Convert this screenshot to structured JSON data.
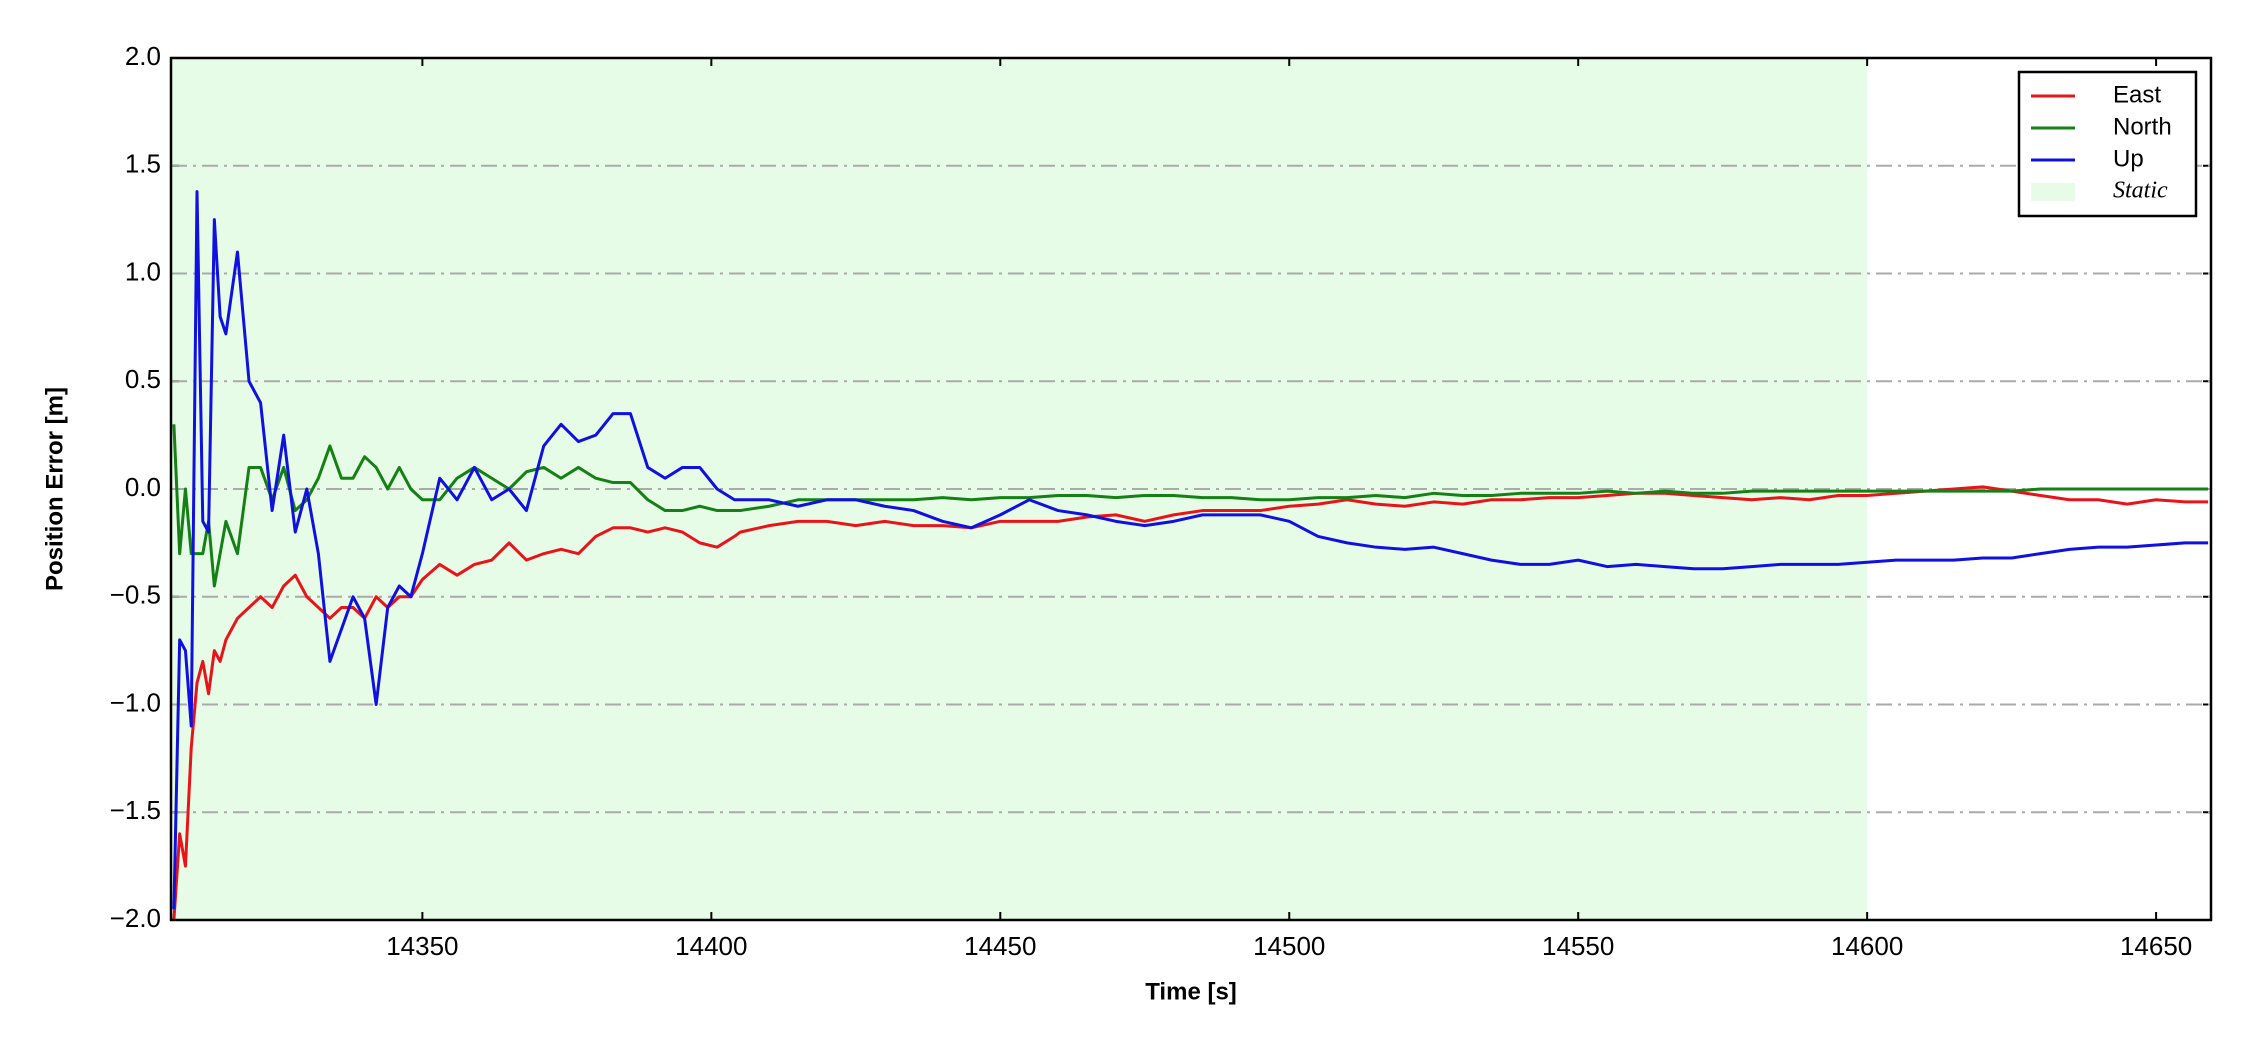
{
  "chart_data": {
    "type": "line",
    "xlabel": "Time [s]",
    "ylabel": "Position Error [m]",
    "x": [
      14307,
      14308,
      14309,
      14310,
      14311,
      14312,
      14313,
      14314,
      14315,
      14316,
      14318,
      14320,
      14322,
      14324,
      14326,
      14328,
      14330,
      14332,
      14334,
      14336,
      14338,
      14340,
      14342,
      14344,
      14346,
      14348,
      14350,
      14353,
      14356,
      14359,
      14362,
      14365,
      14368,
      14371,
      14374,
      14377,
      14380,
      14383,
      14386,
      14389,
      14392,
      14395,
      14398,
      14401,
      14404,
      14405,
      14410,
      14415,
      14420,
      14425,
      14430,
      14435,
      14440,
      14445,
      14450,
      14455,
      14460,
      14465,
      14470,
      14475,
      14480,
      14485,
      14490,
      14495,
      14500,
      14505,
      14510,
      14515,
      14520,
      14525,
      14530,
      14535,
      14540,
      14545,
      14550,
      14555,
      14560,
      14565,
      14570,
      14575,
      14580,
      14585,
      14590,
      14595,
      14600,
      14605,
      14610,
      14615,
      14620,
      14625,
      14630,
      14635,
      14640,
      14645,
      14650,
      14655,
      14659
    ],
    "series": [
      {
        "name": "East",
        "color": "#e8141a",
        "values": [
          -2,
          -1.6,
          -1.75,
          -1.2,
          -0.9,
          -0.8,
          -0.95,
          -0.75,
          -0.8,
          -0.7,
          -0.6,
          -0.55,
          -0.5,
          -0.55,
          -0.45,
          -0.4,
          -0.5,
          -0.55,
          -0.6,
          -0.55,
          -0.55,
          -0.6,
          -0.5,
          -0.55,
          -0.5,
          -0.5,
          -0.42,
          -0.35,
          -0.4,
          -0.35,
          -0.33,
          -0.25,
          -0.33,
          -0.3,
          -0.28,
          -0.3,
          -0.22,
          -0.18,
          -0.18,
          -0.2,
          -0.18,
          -0.2,
          -0.25,
          -0.27,
          -0.22,
          -0.2,
          -0.17,
          -0.15,
          -0.15,
          -0.17,
          -0.15,
          -0.17,
          -0.17,
          -0.18,
          -0.15,
          -0.15,
          -0.15,
          -0.13,
          -0.12,
          -0.15,
          -0.12,
          -0.1,
          -0.1,
          -0.1,
          -0.08,
          -0.07,
          -0.05,
          -0.07,
          -0.08,
          -0.06,
          -0.07,
          -0.05,
          -0.05,
          -0.04,
          -0.04,
          -0.03,
          -0.02,
          -0.02,
          -0.03,
          -0.04,
          -0.05,
          -0.04,
          -0.05,
          -0.03,
          -0.03,
          -0.02,
          -0.01,
          0,
          0.01,
          -0.01,
          -0.03,
          -0.05,
          -0.05,
          -0.07,
          -0.05,
          -0.06,
          -0.06
        ]
      },
      {
        "name": "North",
        "color": "#158015",
        "values": [
          0.3,
          -0.3,
          0,
          -0.3,
          -0.3,
          -0.3,
          -0.15,
          -0.45,
          -0.3,
          -0.15,
          -0.3,
          0.1,
          0.1,
          -0.05,
          0.1,
          -0.1,
          -0.05,
          0.05,
          0.2,
          0.05,
          0.05,
          0.15,
          0.1,
          0,
          0.1,
          0,
          -0.05,
          -0.05,
          0.05,
          0.1,
          0.05,
          0,
          0.08,
          0.1,
          0.05,
          0.1,
          0.05,
          0.03,
          0.03,
          -0.05,
          -0.1,
          -0.1,
          -0.08,
          -0.1,
          -0.1,
          -0.1,
          -0.08,
          -0.05,
          -0.05,
          -0.05,
          -0.05,
          -0.05,
          -0.04,
          -0.05,
          -0.04,
          -0.04,
          -0.03,
          -0.03,
          -0.04,
          -0.03,
          -0.03,
          -0.04,
          -0.04,
          -0.05,
          -0.05,
          -0.04,
          -0.04,
          -0.03,
          -0.04,
          -0.02,
          -0.03,
          -0.03,
          -0.02,
          -0.02,
          -0.02,
          -0.01,
          -0.02,
          -0.01,
          -0.02,
          -0.02,
          -0.01,
          -0.01,
          -0.01,
          -0.01,
          -0.01,
          -0.01,
          -0.01,
          -0.01,
          -0.01,
          -0.01,
          0,
          0,
          0,
          0,
          0,
          0,
          0
        ]
      },
      {
        "name": "Up",
        "color": "#1010e0",
        "values": [
          -1.95,
          -0.7,
          -0.75,
          -1.1,
          1.38,
          -0.15,
          -0.2,
          1.25,
          0.8,
          0.72,
          1.1,
          0.5,
          0.4,
          -0.1,
          0.25,
          -0.2,
          0,
          -0.3,
          -0.8,
          -0.65,
          -0.5,
          -0.6,
          -1.0,
          -0.55,
          -0.45,
          -0.5,
          -0.3,
          0.05,
          -0.05,
          0.1,
          -0.05,
          0,
          -0.1,
          0.2,
          0.3,
          0.22,
          0.25,
          0.35,
          0.35,
          0.1,
          0.05,
          0.1,
          0.1,
          0,
          -0.05,
          -0.05,
          -0.05,
          -0.08,
          -0.05,
          -0.05,
          -0.08,
          -0.1,
          -0.15,
          -0.18,
          -0.12,
          -0.05,
          -0.1,
          -0.12,
          -0.15,
          -0.17,
          -0.15,
          -0.12,
          -0.12,
          -0.12,
          -0.15,
          -0.22,
          -0.25,
          -0.27,
          -0.28,
          -0.27,
          -0.3,
          -0.33,
          -0.35,
          -0.35,
          -0.33,
          -0.36,
          -0.35,
          -0.36,
          -0.37,
          -0.37,
          -0.36,
          -0.35,
          -0.35,
          -0.35,
          -0.34,
          -0.33,
          -0.33,
          -0.33,
          -0.32,
          -0.32,
          -0.3,
          -0.28,
          -0.27,
          -0.27,
          -0.26,
          -0.25,
          -0.25
        ]
      }
    ],
    "spans": [
      {
        "name": "Static",
        "start": 14306.5,
        "end": 14600,
        "color": "#e6fce6"
      }
    ],
    "xlim": [
      14306.5,
      14659.5
    ],
    "xticks": [
      14350,
      14400,
      14450,
      14500,
      14550,
      14600,
      14650
    ],
    "ylim": [
      -2,
      2
    ],
    "yticks": [
      {
        "value": -2,
        "label": "−2.0"
      },
      {
        "value": -1.5,
        "label": "−1.5"
      },
      {
        "value": -1,
        "label": "−1.0"
      },
      {
        "value": -0.5,
        "label": "−0.5"
      },
      {
        "value": 0,
        "label": "0.0"
      },
      0.5,
      {
        "value": 1,
        "label": "1.0"
      },
      1.5,
      {
        "value": 2,
        "label": "2.0"
      }
    ],
    "grid": true,
    "legend": "upper right"
  }
}
